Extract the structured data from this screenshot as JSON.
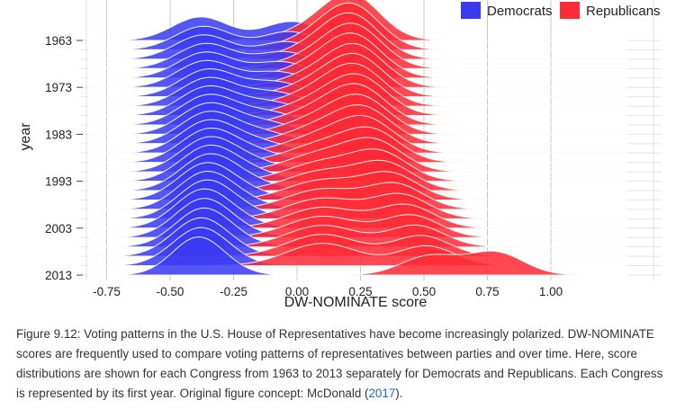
{
  "chart_data": {
    "type": "ridgeline",
    "xlabel": "DW-NOMINATE score",
    "ylabel": "year",
    "x_ticks": [
      -0.75,
      -0.5,
      -0.25,
      0.0,
      0.25,
      0.5,
      0.75,
      1.0
    ],
    "x_tick_labels": [
      "-0.75",
      "-0.50",
      "-0.25",
      "0.00",
      "0.25",
      "0.50",
      "0.75",
      "1.00"
    ],
    "xlim": [
      -0.85,
      1.4
    ],
    "y_tick_labels": [
      "1963",
      "1973",
      "1983",
      "1993",
      "2003",
      "2013"
    ],
    "congress_years": [
      1963,
      1965,
      1967,
      1969,
      1971,
      1973,
      1975,
      1977,
      1979,
      1981,
      1983,
      1985,
      1987,
      1989,
      1991,
      1993,
      1995,
      1997,
      1999,
      2001,
      2003,
      2005,
      2007,
      2009,
      2011,
      2013
    ],
    "legend": {
      "position": "top-right",
      "entries": [
        "Democrats",
        "Republicans"
      ]
    },
    "series": [
      {
        "name": "Democrats",
        "color": "#3a3af2",
        "modes": [
          [
            -0.38,
            0.11,
            0.62,
            -0.02,
            0.11,
            0.5
          ],
          [
            -0.37,
            0.11,
            0.62,
            -0.03,
            0.11,
            0.48
          ],
          [
            -0.37,
            0.11,
            0.64,
            -0.04,
            0.11,
            0.46
          ],
          [
            -0.36,
            0.11,
            0.66,
            -0.05,
            0.11,
            0.44
          ],
          [
            -0.36,
            0.11,
            0.68,
            -0.06,
            0.11,
            0.42
          ],
          [
            -0.36,
            0.11,
            0.7,
            -0.07,
            0.11,
            0.4
          ],
          [
            -0.35,
            0.11,
            0.72,
            -0.08,
            0.11,
            0.38
          ],
          [
            -0.35,
            0.11,
            0.74,
            -0.09,
            0.11,
            0.36
          ],
          [
            -0.35,
            0.11,
            0.76,
            -0.1,
            0.11,
            0.34
          ],
          [
            -0.35,
            0.11,
            0.78,
            -0.11,
            0.11,
            0.32
          ],
          [
            -0.35,
            0.11,
            0.8,
            -0.12,
            0.11,
            0.3
          ],
          [
            -0.35,
            0.11,
            0.82,
            -0.13,
            0.11,
            0.28
          ],
          [
            -0.35,
            0.11,
            0.84,
            -0.14,
            0.11,
            0.26
          ],
          [
            -0.35,
            0.11,
            0.86,
            -0.15,
            0.11,
            0.24
          ],
          [
            -0.35,
            0.11,
            0.88,
            -0.16,
            0.11,
            0.22
          ],
          [
            -0.35,
            0.11,
            0.9,
            -0.17,
            0.11,
            0.2
          ],
          [
            -0.35,
            0.11,
            0.92,
            -0.18,
            0.11,
            0.18
          ],
          [
            -0.36,
            0.11,
            0.94,
            -0.19,
            0.11,
            0.16
          ],
          [
            -0.36,
            0.11,
            0.96,
            -0.2,
            0.11,
            0.14
          ],
          [
            -0.36,
            0.11,
            0.98,
            -0.21,
            0.11,
            0.12
          ],
          [
            -0.37,
            0.11,
            1.0,
            -0.22,
            0.11,
            0.1
          ],
          [
            -0.37,
            0.11,
            1.0,
            -0.23,
            0.11,
            0.08
          ],
          [
            -0.37,
            0.11,
            1.0,
            -0.24,
            0.11,
            0.06
          ],
          [
            -0.38,
            0.11,
            1.0,
            -0.25,
            0.11,
            0.04
          ],
          [
            -0.38,
            0.11,
            1.0,
            -0.26,
            0.11,
            0.02
          ],
          [
            -0.39,
            0.1,
            1.0,
            -0.25,
            0.08,
            0.05
          ]
        ]
      },
      {
        "name": "Republicans",
        "color": "#ff2a35",
        "modes": [
          [
            0.22,
            0.11,
            1.0,
            0.1,
            0.14,
            0.35
          ],
          [
            0.22,
            0.11,
            0.98,
            0.1,
            0.14,
            0.36
          ],
          [
            0.22,
            0.11,
            0.96,
            0.1,
            0.14,
            0.37
          ],
          [
            0.23,
            0.11,
            0.94,
            0.1,
            0.14,
            0.38
          ],
          [
            0.23,
            0.11,
            0.92,
            0.1,
            0.14,
            0.39
          ],
          [
            0.24,
            0.11,
            0.9,
            0.1,
            0.14,
            0.4
          ],
          [
            0.24,
            0.11,
            0.88,
            0.1,
            0.14,
            0.41
          ],
          [
            0.24,
            0.11,
            0.86,
            0.1,
            0.14,
            0.42
          ],
          [
            0.25,
            0.11,
            0.84,
            0.1,
            0.14,
            0.43
          ],
          [
            0.25,
            0.11,
            0.82,
            0.1,
            0.14,
            0.44
          ],
          [
            0.26,
            0.11,
            0.8,
            0.1,
            0.14,
            0.45
          ],
          [
            0.27,
            0.11,
            0.78,
            0.1,
            0.14,
            0.46
          ],
          [
            0.28,
            0.11,
            0.76,
            0.1,
            0.14,
            0.47
          ],
          [
            0.3,
            0.11,
            0.74,
            0.1,
            0.14,
            0.48
          ],
          [
            0.31,
            0.11,
            0.72,
            0.1,
            0.14,
            0.49
          ],
          [
            0.33,
            0.11,
            0.7,
            0.1,
            0.14,
            0.5
          ],
          [
            0.35,
            0.11,
            0.68,
            0.1,
            0.14,
            0.51
          ],
          [
            0.37,
            0.11,
            0.66,
            0.1,
            0.14,
            0.52
          ],
          [
            0.39,
            0.11,
            0.64,
            0.1,
            0.14,
            0.53
          ],
          [
            0.41,
            0.11,
            0.62,
            0.1,
            0.14,
            0.54
          ],
          [
            0.43,
            0.11,
            0.6,
            0.1,
            0.14,
            0.55
          ],
          [
            0.45,
            0.11,
            0.58,
            0.1,
            0.14,
            0.56
          ],
          [
            0.47,
            0.11,
            0.56,
            0.1,
            0.14,
            0.57
          ],
          [
            0.49,
            0.11,
            0.54,
            0.1,
            0.14,
            0.58
          ],
          [
            0.51,
            0.11,
            0.52,
            0.1,
            0.14,
            0.59
          ],
          [
            0.52,
            0.11,
            0.5,
            0.78,
            0.11,
            0.6
          ]
        ]
      }
    ]
  },
  "caption": {
    "text": "Figure 9.12: Voting patterns in the U.S. House of Representatives have become increasingly polarized. DW-NOMINATE scores are frequently used to compare voting patterns of representatives between parties and over time. Here, score distributions are shown for each Congress from 1963 to 2013 separately for Democrats and Republicans. Each Congress is represented by its first year. Original figure concept: McDonald (",
    "ref": "2017",
    "end": ")."
  }
}
